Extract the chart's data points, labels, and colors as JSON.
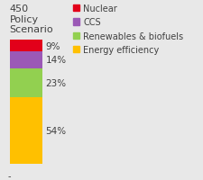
{
  "title": "450\nPolicy\nScenario",
  "categories": [
    "Nuclear",
    "CCS",
    "Renewables & biofuels",
    "Energy efficiency"
  ],
  "values": [
    9,
    14,
    23,
    54
  ],
  "colors": [
    "#e2001a",
    "#9b59b6",
    "#92d050",
    "#ffc000"
  ],
  "labels": [
    "9%",
    "14%",
    "23%",
    "54%"
  ],
  "background_color": "#e8e8e8",
  "text_color": "#404040",
  "title_fontsize": 8.0,
  "label_fontsize": 7.5,
  "legend_fontsize": 7.0
}
